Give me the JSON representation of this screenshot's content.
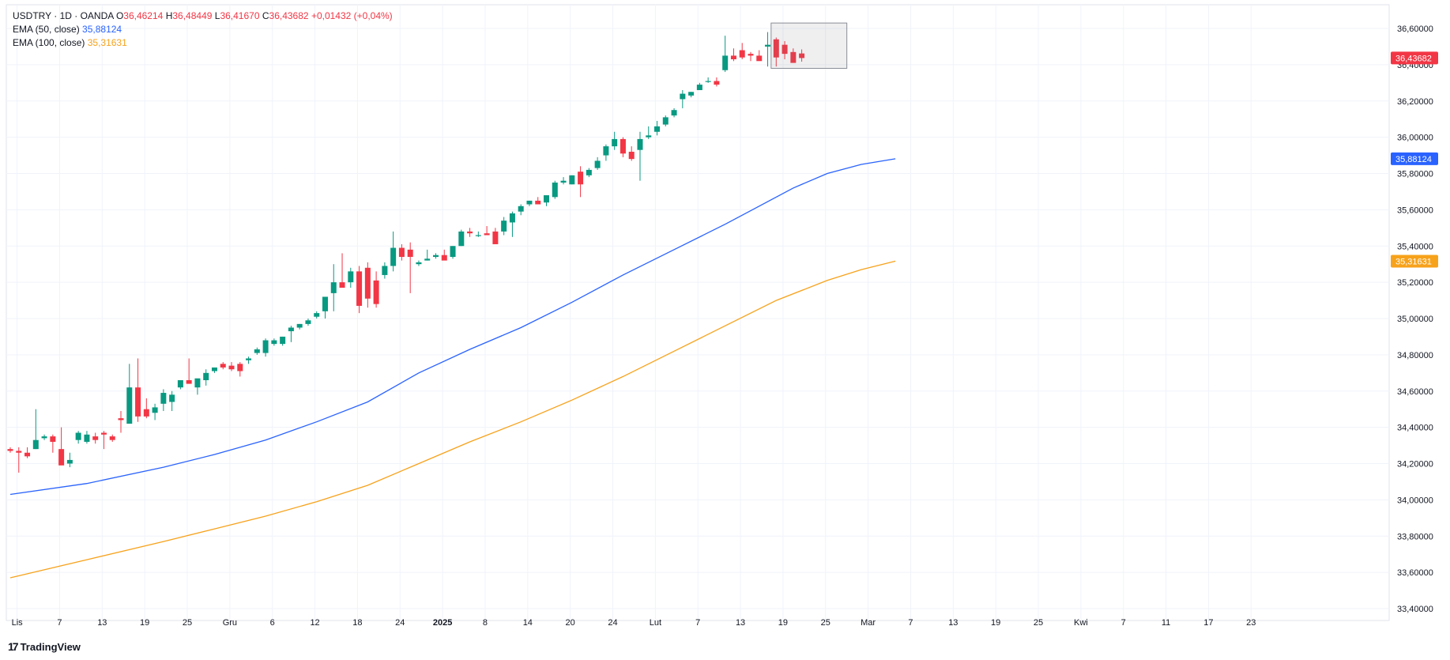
{
  "header": {
    "symbol": "USDTRY · 1D · OANDA",
    "o_label": "O",
    "o_value": "36,46214",
    "h_label": "H",
    "h_value": "36,48449",
    "l_label": "L",
    "l_value": "36,41670",
    "c_label": "C",
    "c_value": "36,43682",
    "change": "+0,01432 (+0,04%)",
    "ema50_label": "EMA (50, close)",
    "ema50_value": "35,88124",
    "ema100_label": "EMA (100, close)",
    "ema100_value": "35,31631"
  },
  "branding": {
    "mark": "17",
    "name": "TradingView"
  },
  "colors": {
    "up": "#089981",
    "down": "#f23645",
    "ema50": "#2962ff",
    "ema100": "#f7a21b",
    "grid": "#f0f3fa"
  },
  "chart_data": {
    "type": "candlestick",
    "title": "USDTRY · 1D · OANDA",
    "ylim": [
      33.4,
      36.65
    ],
    "y_ticks": [
      "36,60000",
      "36,40000",
      "36,20000",
      "36,00000",
      "35,80000",
      "35,60000",
      "35,40000",
      "35,20000",
      "35,00000",
      "34,80000",
      "34,60000",
      "34,40000",
      "34,20000",
      "34,00000",
      "33,80000",
      "33,60000",
      "33,40000"
    ],
    "x_labels": [
      {
        "label": "Lis",
        "bar": 0.8
      },
      {
        "label": "7",
        "bar": 5.8
      },
      {
        "label": "13",
        "bar": 10.8
      },
      {
        "label": "19",
        "bar": 15.8
      },
      {
        "label": "25",
        "bar": 20.8
      },
      {
        "label": "Gru",
        "bar": 25.8
      },
      {
        "label": "6",
        "bar": 30.8
      },
      {
        "label": "12",
        "bar": 35.8
      },
      {
        "label": "18",
        "bar": 40.8
      },
      {
        "label": "24",
        "bar": 45.8
      },
      {
        "label": "2025",
        "bar": 50.8
      },
      {
        "label": "8",
        "bar": 55.8
      },
      {
        "label": "14",
        "bar": 60.8
      },
      {
        "label": "20",
        "bar": 65.8
      },
      {
        "label": "24",
        "bar": 70.8
      },
      {
        "label": "Lut",
        "bar": 75.8
      },
      {
        "label": "7",
        "bar": 80.8
      },
      {
        "label": "13",
        "bar": 85.8
      },
      {
        "label": "19",
        "bar": 90.8
      },
      {
        "label": "25",
        "bar": 95.8
      },
      {
        "label": "Mar",
        "bar": 100.8
      },
      {
        "label": "7",
        "bar": 105.8
      },
      {
        "label": "13",
        "bar": 110.8
      },
      {
        "label": "19",
        "bar": 115.8
      },
      {
        "label": "25",
        "bar": 120.8
      },
      {
        "label": "Kwi",
        "bar": 125.8
      },
      {
        "label": "7",
        "bar": 130.8
      },
      {
        "label": "11",
        "bar": 135.8
      },
      {
        "label": "17",
        "bar": 140.8
      },
      {
        "label": "23",
        "bar": 145.8
      }
    ],
    "candles": [
      [
        34.28,
        34.29,
        34.26,
        34.27
      ],
      [
        34.27,
        34.29,
        34.15,
        34.26
      ],
      [
        34.26,
        34.29,
        34.23,
        34.24
      ],
      [
        34.28,
        34.5,
        34.28,
        34.33
      ],
      [
        34.34,
        34.36,
        34.33,
        34.35
      ],
      [
        34.35,
        34.36,
        34.26,
        34.32
      ],
      [
        34.28,
        34.4,
        34.2,
        34.19
      ],
      [
        34.2,
        34.26,
        34.18,
        34.22
      ],
      [
        34.33,
        34.38,
        34.31,
        34.37
      ],
      [
        34.32,
        34.38,
        34.31,
        34.36
      ],
      [
        34.35,
        34.37,
        34.31,
        34.33
      ],
      [
        34.37,
        34.38,
        34.28,
        34.36
      ],
      [
        34.35,
        34.36,
        34.32,
        34.33
      ],
      [
        34.45,
        34.49,
        34.37,
        34.44
      ],
      [
        34.42,
        34.75,
        34.42,
        34.62
      ],
      [
        34.62,
        34.78,
        34.43,
        34.46
      ],
      [
        34.5,
        34.56,
        34.45,
        34.46
      ],
      [
        34.48,
        34.53,
        34.44,
        34.51
      ],
      [
        34.53,
        34.61,
        34.49,
        34.59
      ],
      [
        34.54,
        34.6,
        34.49,
        34.58
      ],
      [
        34.62,
        34.66,
        34.61,
        34.66
      ],
      [
        34.66,
        34.78,
        34.64,
        34.64
      ],
      [
        34.62,
        34.66,
        34.58,
        34.67
      ],
      [
        34.66,
        34.72,
        34.63,
        34.7
      ],
      [
        34.71,
        34.73,
        34.7,
        34.73
      ],
      [
        34.75,
        34.76,
        34.72,
        34.73
      ],
      [
        34.74,
        34.76,
        34.71,
        34.72
      ],
      [
        34.75,
        34.76,
        34.68,
        34.71
      ],
      [
        34.77,
        34.79,
        34.75,
        34.78
      ],
      [
        34.81,
        34.84,
        34.8,
        34.83
      ],
      [
        34.81,
        34.89,
        34.79,
        34.88
      ],
      [
        34.86,
        34.89,
        34.85,
        34.88
      ],
      [
        34.86,
        34.9,
        34.85,
        34.9
      ],
      [
        34.93,
        34.96,
        34.87,
        34.95
      ],
      [
        34.95,
        34.97,
        34.94,
        34.97
      ],
      [
        34.97,
        35.0,
        34.96,
        34.99
      ],
      [
        35.01,
        35.04,
        35.0,
        35.03
      ],
      [
        35.04,
        35.1,
        35.0,
        35.12
      ],
      [
        35.14,
        35.3,
        35.04,
        35.2
      ],
      [
        35.2,
        35.36,
        35.18,
        35.17
      ],
      [
        35.2,
        35.28,
        35.17,
        35.26
      ],
      [
        35.26,
        35.29,
        35.03,
        35.07
      ],
      [
        35.28,
        35.31,
        35.06,
        35.11
      ],
      [
        35.21,
        35.26,
        35.06,
        35.08
      ],
      [
        35.24,
        35.31,
        35.22,
        35.29
      ],
      [
        35.29,
        35.48,
        35.26,
        35.39
      ],
      [
        35.39,
        35.41,
        35.32,
        35.34
      ],
      [
        35.38,
        35.42,
        35.14,
        35.34
      ],
      [
        35.3,
        35.32,
        35.29,
        35.31
      ],
      [
        35.32,
        35.38,
        35.32,
        35.33
      ],
      [
        35.34,
        35.36,
        35.33,
        35.35
      ],
      [
        35.35,
        35.38,
        35.33,
        35.32
      ],
      [
        35.34,
        35.4,
        35.33,
        35.4
      ],
      [
        35.4,
        35.49,
        35.4,
        35.48
      ],
      [
        35.48,
        35.5,
        35.45,
        35.47
      ],
      [
        35.46,
        35.48,
        35.45,
        35.46
      ],
      [
        35.47,
        35.51,
        35.46,
        35.46
      ],
      [
        35.48,
        35.5,
        35.43,
        35.41
      ],
      [
        35.48,
        35.56,
        35.46,
        35.54
      ],
      [
        35.53,
        35.59,
        35.45,
        35.58
      ],
      [
        35.59,
        35.63,
        35.57,
        35.62
      ],
      [
        35.63,
        35.65,
        35.62,
        35.65
      ],
      [
        35.65,
        35.67,
        35.63,
        35.63
      ],
      [
        35.64,
        35.68,
        35.62,
        35.68
      ],
      [
        35.67,
        35.76,
        35.66,
        35.75
      ],
      [
        35.75,
        35.78,
        35.74,
        35.76
      ],
      [
        35.74,
        35.79,
        35.74,
        35.79
      ],
      [
        35.81,
        35.84,
        35.67,
        35.74
      ],
      [
        35.79,
        35.83,
        35.78,
        35.82
      ],
      [
        35.83,
        35.89,
        35.82,
        35.87
      ],
      [
        35.9,
        35.96,
        35.87,
        35.95
      ],
      [
        35.95,
        36.03,
        35.93,
        35.99
      ],
      [
        35.99,
        36.0,
        35.89,
        35.91
      ],
      [
        35.92,
        35.95,
        35.87,
        35.88
      ],
      [
        35.93,
        36.03,
        35.76,
        35.99
      ],
      [
        36.0,
        36.06,
        35.99,
        36.01
      ],
      [
        36.03,
        36.09,
        36.01,
        36.06
      ],
      [
        36.07,
        36.12,
        36.06,
        36.11
      ],
      [
        36.12,
        36.16,
        36.11,
        36.15
      ],
      [
        36.21,
        36.26,
        36.16,
        36.24
      ],
      [
        36.23,
        36.25,
        36.22,
        36.25
      ],
      [
        36.26,
        36.3,
        36.26,
        36.29
      ],
      [
        36.31,
        36.33,
        36.3,
        36.31
      ],
      [
        36.31,
        36.33,
        36.28,
        36.29
      ],
      [
        36.37,
        36.56,
        36.36,
        36.45
      ],
      [
        36.45,
        36.49,
        36.42,
        36.43
      ],
      [
        36.48,
        36.52,
        36.43,
        36.44
      ],
      [
        36.46,
        36.47,
        36.42,
        36.45
      ],
      [
        36.45,
        36.48,
        36.43,
        36.42
      ],
      [
        36.5,
        36.58,
        36.39,
        36.51
      ],
      [
        36.54,
        36.55,
        36.39,
        36.44
      ],
      [
        36.51,
        36.53,
        36.43,
        36.46
      ],
      [
        36.47,
        36.49,
        36.42,
        36.41
      ],
      [
        36.46214,
        36.48449,
        36.4167,
        36.43682
      ]
    ],
    "ema50": [
      [
        0,
        34.03
      ],
      [
        9,
        34.09
      ],
      [
        18,
        34.18
      ],
      [
        24,
        34.25
      ],
      [
        30,
        34.33
      ],
      [
        36,
        34.43
      ],
      [
        42,
        34.54
      ],
      [
        48,
        34.7
      ],
      [
        54,
        34.83
      ],
      [
        60,
        34.95
      ],
      [
        66,
        35.09
      ],
      [
        72,
        35.24
      ],
      [
        78,
        35.38
      ],
      [
        84,
        35.52
      ],
      [
        88,
        35.62
      ],
      [
        92,
        35.72
      ],
      [
        96,
        35.8
      ],
      [
        100,
        35.85
      ],
      [
        104,
        35.88124
      ]
    ],
    "ema100": [
      [
        0,
        33.57
      ],
      [
        9,
        33.67
      ],
      [
        18,
        33.77
      ],
      [
        24,
        33.84
      ],
      [
        30,
        33.91
      ],
      [
        36,
        33.99
      ],
      [
        42,
        34.08
      ],
      [
        48,
        34.2
      ],
      [
        54,
        34.32
      ],
      [
        60,
        34.43
      ],
      [
        66,
        34.55
      ],
      [
        72,
        34.68
      ],
      [
        78,
        34.82
      ],
      [
        84,
        34.96
      ],
      [
        90,
        35.1
      ],
      [
        96,
        35.21
      ],
      [
        100,
        35.27
      ],
      [
        104,
        35.31631
      ]
    ],
    "last_price": "36,43682",
    "ema50_label": "35,88124",
    "ema100_label": "35,31631",
    "grid": true
  }
}
